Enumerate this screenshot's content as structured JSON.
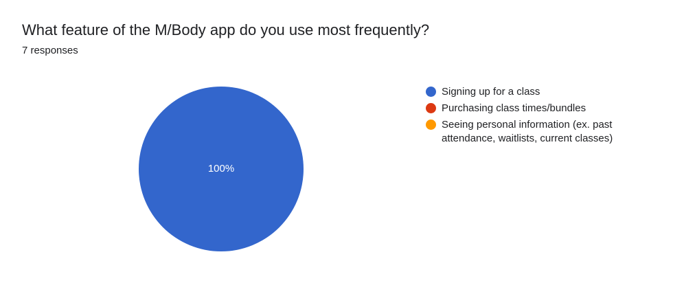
{
  "title": "What feature of the M/Body app do you use most frequently?",
  "subtitle": "7 responses",
  "chart_data": {
    "type": "pie",
    "title": "What feature of the M/Body app do you use most frequently?",
    "total_responses": 7,
    "legend_position": "right",
    "slices": [
      {
        "label": "Signing up for a class",
        "value": 7,
        "percent_label": "100%",
        "color": "#3366cc"
      },
      {
        "label": "Purchasing class times/bundles",
        "value": 0,
        "percent_label": "",
        "color": "#dc3912"
      },
      {
        "label": "Seeing personal information (ex. past attendance, waitlists, current classes)",
        "value": 0,
        "percent_label": "",
        "color": "#ff9900"
      }
    ]
  }
}
